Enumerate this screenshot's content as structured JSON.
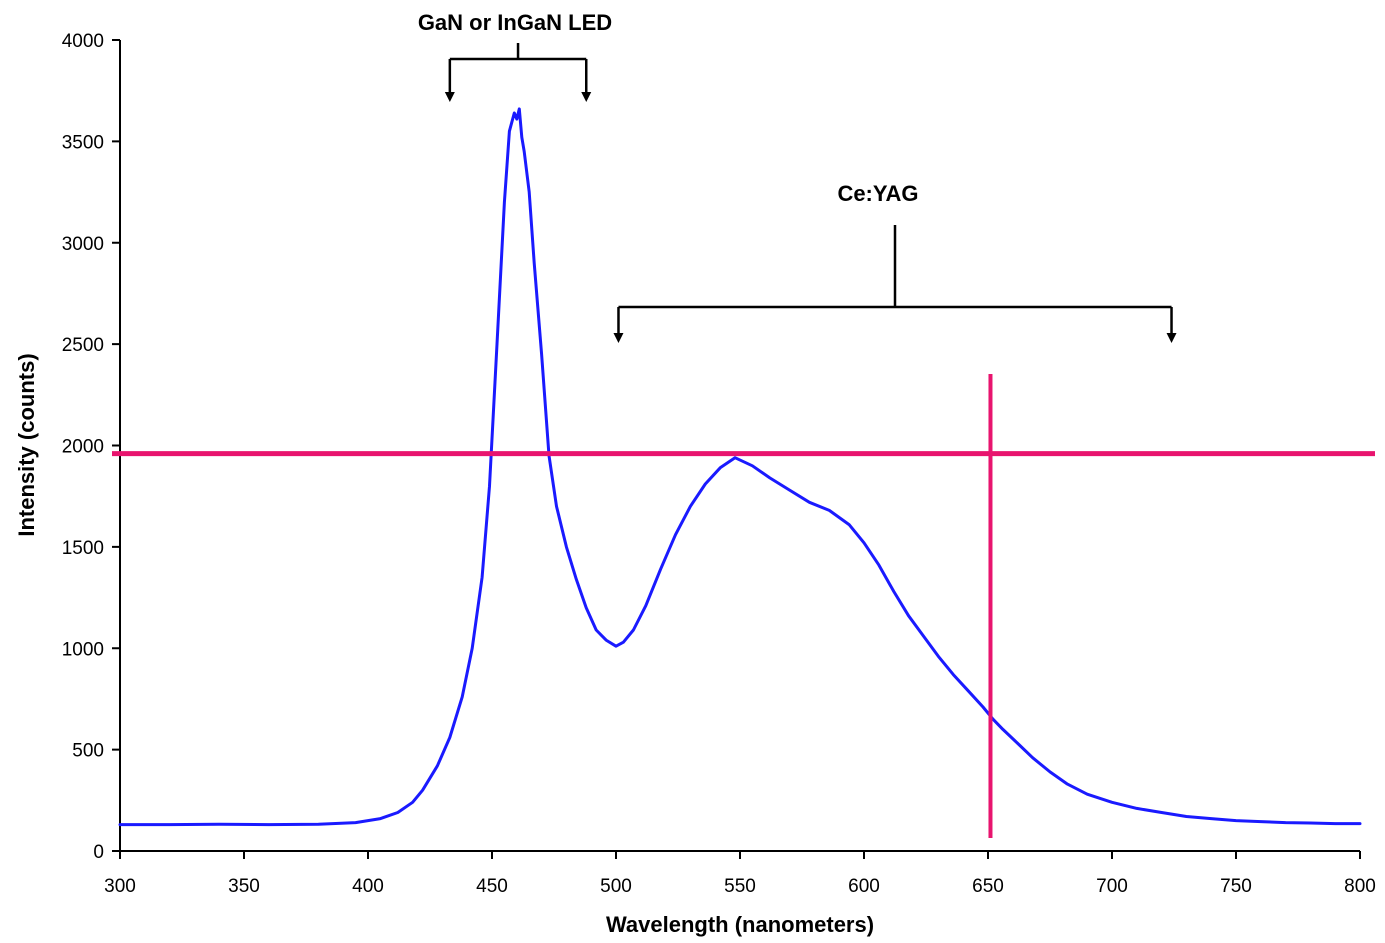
{
  "chart_data": {
    "type": "line",
    "title": "",
    "xlabel": "Wavelength (nanometers)",
    "ylabel": "Intensity (counts)",
    "xlim": [
      300,
      800
    ],
    "ylim": [
      0,
      4000
    ],
    "x_ticks": [
      "300",
      "350",
      "400",
      "450",
      "500",
      "550",
      "600",
      "650",
      "700",
      "750",
      "800"
    ],
    "y_ticks": [
      "0",
      "500",
      "1000",
      "1500",
      "2000",
      "2500",
      "3000",
      "3500",
      "4000"
    ],
    "grid": false,
    "legend": "none",
    "series": [
      {
        "color": "#1a1aff",
        "x": [
          300,
          320,
          340,
          360,
          380,
          395,
          405,
          412,
          418,
          422,
          428,
          433,
          438,
          442,
          446,
          449,
          452,
          455,
          457,
          459,
          460,
          461,
          462,
          463,
          465,
          467,
          470,
          473,
          476,
          480,
          484,
          488,
          492,
          496,
          500,
          503,
          507,
          512,
          518,
          524,
          530,
          536,
          542,
          548,
          555,
          562,
          570,
          578,
          586,
          594,
          600,
          606,
          612,
          618,
          624,
          630,
          636,
          642,
          648,
          652,
          656,
          662,
          668,
          675,
          682,
          690,
          700,
          710,
          720,
          730,
          740,
          750,
          760,
          770,
          780,
          790,
          800
        ],
        "y": [
          130,
          130,
          132,
          130,
          132,
          140,
          160,
          190,
          240,
          300,
          420,
          560,
          760,
          1000,
          1350,
          1800,
          2500,
          3200,
          3550,
          3640,
          3610,
          3660,
          3520,
          3450,
          3250,
          2900,
          2450,
          1950,
          1700,
          1500,
          1340,
          1200,
          1090,
          1040,
          1010,
          1030,
          1090,
          1210,
          1390,
          1560,
          1700,
          1810,
          1890,
          1940,
          1900,
          1840,
          1780,
          1720,
          1680,
          1610,
          1520,
          1410,
          1280,
          1160,
          1060,
          960,
          870,
          790,
          710,
          650,
          600,
          530,
          460,
          390,
          330,
          280,
          240,
          210,
          190,
          170,
          160,
          150,
          145,
          140,
          138,
          135,
          135
        ]
      }
    ],
    "reference_lines": {
      "color": "#e8146e",
      "horizontal_y": 1960,
      "vertical_x": 651
    },
    "annotations": [
      {
        "text": "GaN or InGaN  LED",
        "bracket_from": 433,
        "bracket_to": 488
      },
      {
        "text": "Ce:YAG",
        "bracket_from": 501,
        "bracket_to": 724
      }
    ]
  }
}
